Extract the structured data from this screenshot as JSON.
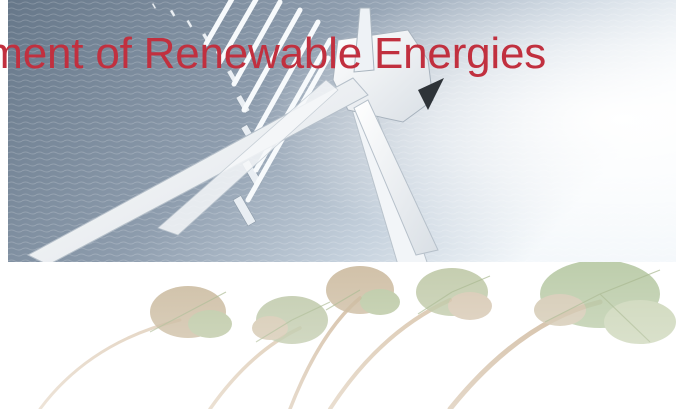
{
  "slide": {
    "title": "oment of Renewable Energies",
    "title_color": "#c1303f"
  },
  "images": {
    "top_photo": {
      "subject": "offshore-wind-turbines-photo",
      "tones": [
        "#6f8093",
        "#b9c6d3",
        "#ffffff"
      ]
    },
    "bottom_photo": {
      "subject": "palm-trees-photo",
      "tones": [
        "#a9b58a",
        "#c7ae8c",
        "#ffffff"
      ]
    }
  }
}
